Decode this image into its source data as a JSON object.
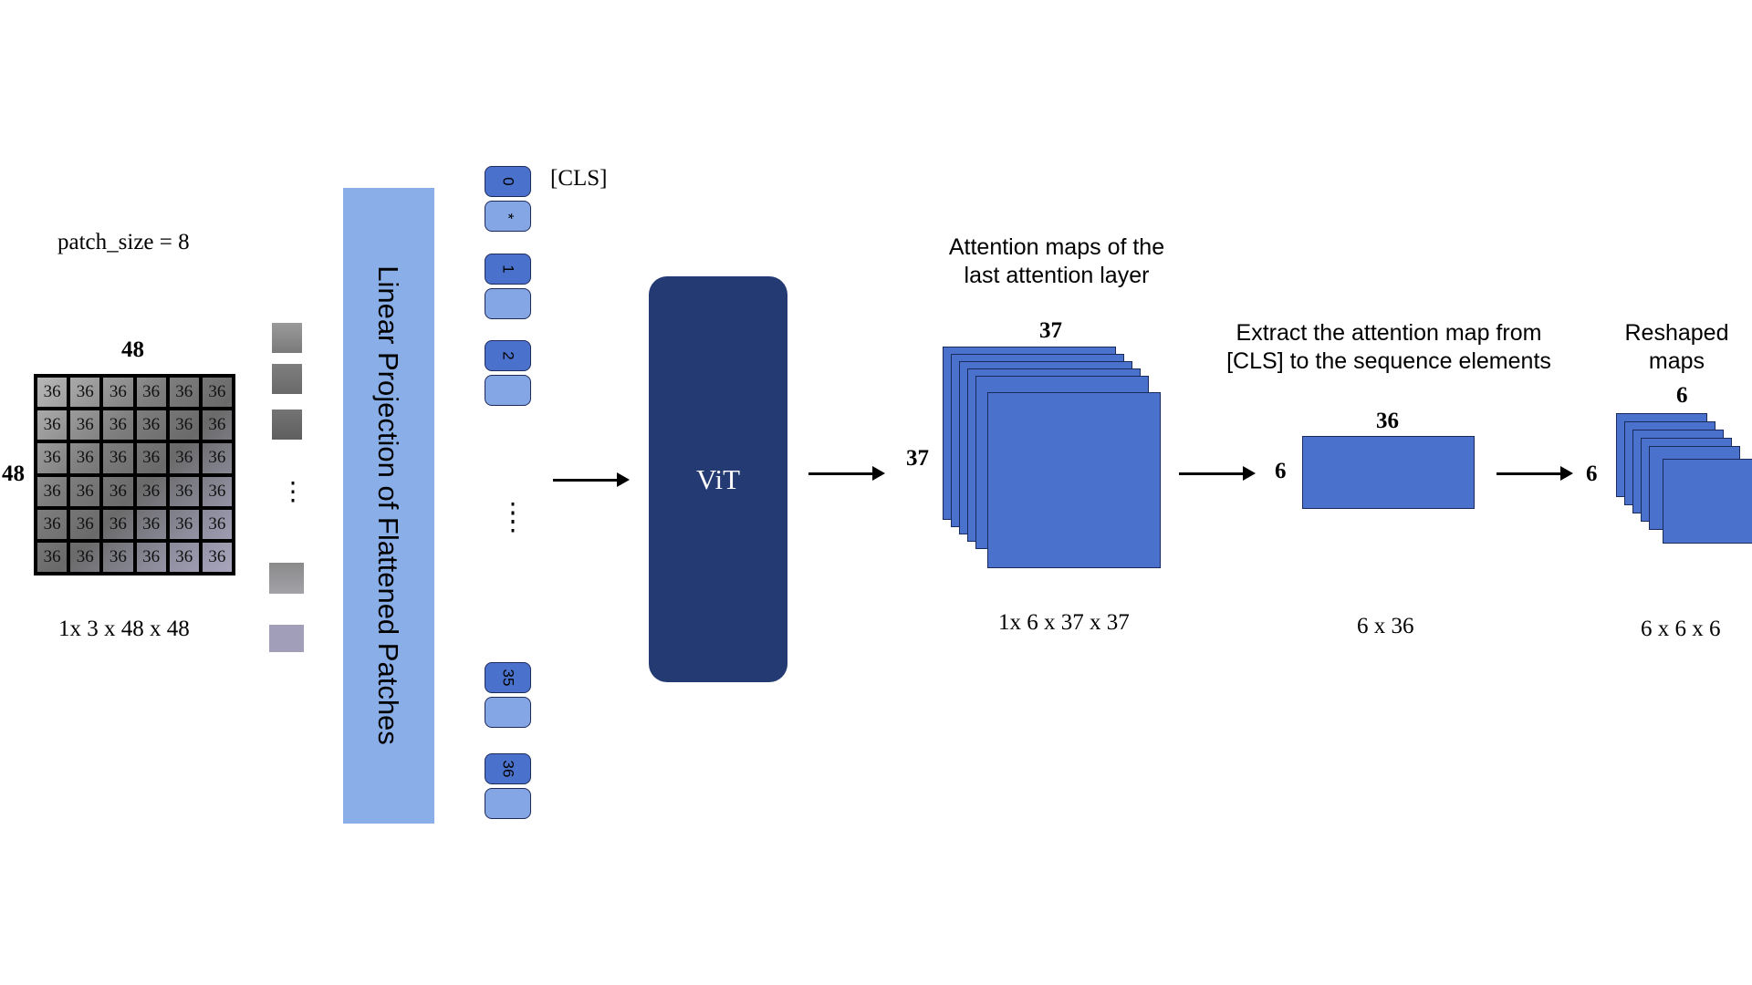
{
  "input": {
    "patch_size_label": "patch_size = 8",
    "width_label": "48",
    "height_label": "48",
    "cell_value": "36",
    "shape_label": "1x 3 x 48 x 48",
    "ellipsis": "⋮"
  },
  "projection": {
    "label": "Linear Projection of Flattened Patches"
  },
  "tokens": {
    "cls_label": "[CLS]",
    "items": [
      {
        "index": "0",
        "extra": "*"
      },
      {
        "index": "1"
      },
      {
        "index": "2"
      },
      {
        "index": "35"
      },
      {
        "index": "36"
      }
    ],
    "ellipsis": "⋮"
  },
  "model": {
    "label": "ViT"
  },
  "attention": {
    "title_line1": "Attention maps of the",
    "title_line2": "last attention layer",
    "width_label": "37",
    "height_label": "37",
    "shape_label": "1x 6 x 37 x 37"
  },
  "extract": {
    "title_line1": "Extract the attention map from",
    "title_line2": "[CLS] to the sequence elements",
    "width_label": "36",
    "height_label": "6",
    "shape_label": "6 x 36"
  },
  "reshaped": {
    "title_line1": "Reshaped",
    "title_line2": "maps",
    "width_label": "6",
    "height_label": "6",
    "shape_label": "6 x 6 x 6"
  },
  "colors": {
    "projection": "#89aee8",
    "token_dark": "#4a72cc",
    "token_light": "#85a6e5",
    "vit": "#233a73",
    "maps": "#4a72cc"
  }
}
